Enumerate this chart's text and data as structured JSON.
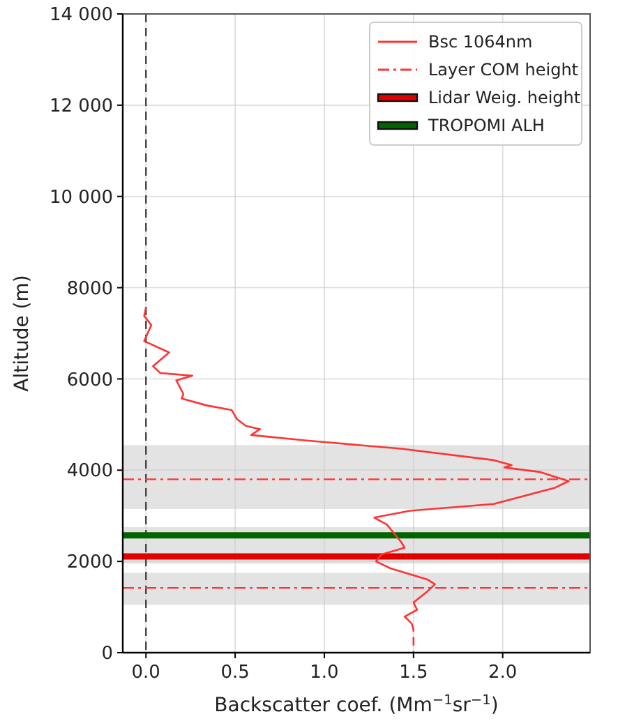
{
  "chart_data": {
    "type": "line",
    "xlabel": "Backscatter coef. (Mm$^{−1}$sr$^{−1}$)",
    "ylabel": "Altitude (m)",
    "xlim": [
      -0.13,
      2.49
    ],
    "ylim": [
      0,
      14000
    ],
    "xticks": [
      {
        "value": 0,
        "label": "0.0"
      },
      {
        "value": 0.5,
        "label": "0.5"
      },
      {
        "value": 1,
        "label": "1.0"
      },
      {
        "value": 1.5,
        "label": "1.5"
      },
      {
        "value": 2,
        "label": "2.0"
      }
    ],
    "yticks": [
      0,
      2000,
      4000,
      6000,
      8000,
      {
        "value": 10000,
        "label": "10 000"
      },
      {
        "value": 12000,
        "label": "12 000"
      },
      {
        "value": 14000,
        "label": "14 000"
      }
    ],
    "grid": true,
    "legend": "top right",
    "line_style": "solid",
    "marker": "none",
    "series": [
      {
        "name": "Bsc 1064nm",
        "color": "#ff3333",
        "x": [
          0,
          -0.01,
          0.03,
          -0.01,
          0.13,
          0.04,
          0.08,
          0.26,
          0.17,
          0.21,
          0.2,
          0.34,
          0.48,
          0.51,
          0.56,
          0.64,
          0.59,
          0.9,
          1.43,
          1.95,
          2.05,
          2.01,
          2.21,
          2.37,
          2.29,
          1.95,
          1.48,
          1.28,
          1.35,
          1.43,
          1.45,
          1.32,
          1.29,
          1.37,
          1.58,
          1.62,
          1.58,
          1.5,
          1.52,
          1.45,
          1.49
        ],
        "values": [
          7570,
          7380,
          7180,
          6830,
          6580,
          6280,
          6130,
          6070,
          5970,
          5670,
          5570,
          5420,
          5320,
          5120,
          4970,
          4900,
          4770,
          4650,
          4470,
          4220,
          4110,
          4060,
          3960,
          3760,
          3610,
          3260,
          3110,
          2960,
          2810,
          2430,
          2300,
          2150,
          2000,
          1850,
          1600,
          1500,
          1350,
          1100,
          940,
          790,
          640
        ]
      },
      {
        "color": "#ff3333",
        "line_style": "dashed",
        "x": [
          1.49,
          1.5,
          1.5
        ],
        "values": [
          640,
          500,
          0
        ]
      }
    ],
    "bands": [
      {
        "axis": "y",
        "from": 3150,
        "to": 4550,
        "color": "#e3e3e3"
      },
      {
        "axis": "y",
        "from": 1950,
        "to": 2750,
        "color": "#e3e3e3"
      },
      {
        "axis": "y",
        "from": 1050,
        "to": 1750,
        "color": "#e3e3e3"
      }
    ],
    "ref_lines": [
      {
        "axis": "x",
        "value": 0,
        "color": "#444444",
        "line_style": "dashed"
      },
      {
        "axis": "y",
        "value": 3800,
        "label": "Layer COM height",
        "color": "#ff3333",
        "line_style": "dashdot"
      },
      {
        "axis": "y",
        "value": 1420,
        "color": "#ff3333",
        "line_style": "dashdot"
      },
      {
        "axis": "y",
        "value": 2110,
        "label": "Lidar Weig. height",
        "color": "#e00000",
        "line_style": "solid"
      },
      {
        "axis": "y",
        "value": 2570,
        "label": "TROPOMI ALH",
        "color": "#006400",
        "line_style": "solid"
      }
    ]
  }
}
